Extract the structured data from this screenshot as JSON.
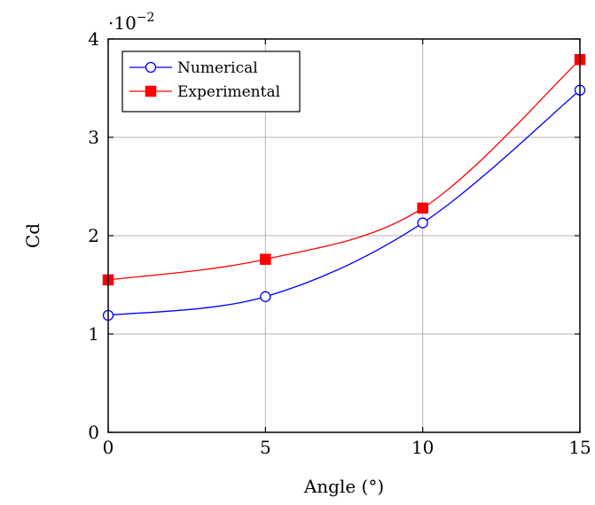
{
  "chart_data": {
    "type": "line",
    "title": "",
    "xlabel": "Angle (°)",
    "ylabel": "Cd",
    "y_multiplier": {
      "base": "·10",
      "exponent": "−2"
    },
    "xlim": [
      0,
      15
    ],
    "ylim": [
      0,
      4
    ],
    "xticks": [
      0,
      5,
      10,
      15
    ],
    "yticks": [
      0,
      1,
      2,
      3,
      4
    ],
    "grid": true,
    "legend_position": "top-left",
    "x": [
      0,
      5,
      10,
      15
    ],
    "series": [
      {
        "name": "Numerical",
        "values": [
          1.19,
          1.38,
          2.13,
          3.48
        ],
        "color": "#0000ff",
        "marker": "open-circle"
      },
      {
        "name": "Experimental",
        "values": [
          1.55,
          1.76,
          2.28,
          3.79
        ],
        "color": "#ff0000",
        "marker": "filled-square"
      }
    ]
  }
}
